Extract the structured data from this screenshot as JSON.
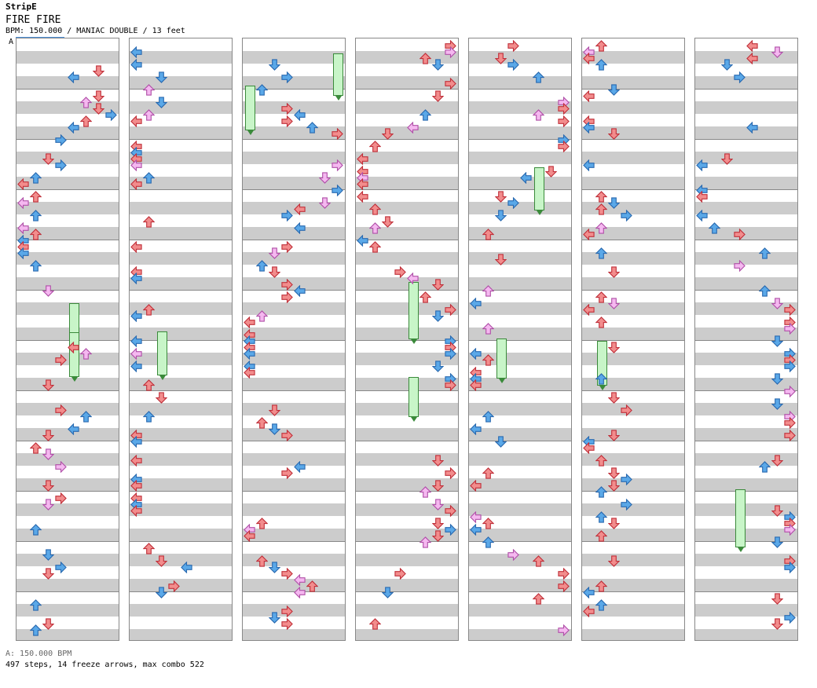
{
  "chart": {
    "artist": "StripE",
    "title": "FIRE FIRE",
    "meta": "BPM: 150.000 / MANIAC DOUBLE / 13 feet",
    "section_marker": "A",
    "bpm_footer": "A: 150.000 BPM",
    "stats": "497 steps, 14 freeze arrows, max combo 522"
  },
  "colors": {
    "red_arrow": "#f28c8c",
    "red_stroke": "#c0303a",
    "blue_arrow": "#5aa8e8",
    "blue_stroke": "#2a6ab0",
    "pink_arrow": "#f5b8f0",
    "pink_stroke": "#b050a8",
    "freeze_fill": "#c8f5c8",
    "stripe": "#cccccc"
  },
  "icons": [
    "arrow-left-icon",
    "arrow-down-icon",
    "arrow-up-icon",
    "arrow-right-icon"
  ]
}
